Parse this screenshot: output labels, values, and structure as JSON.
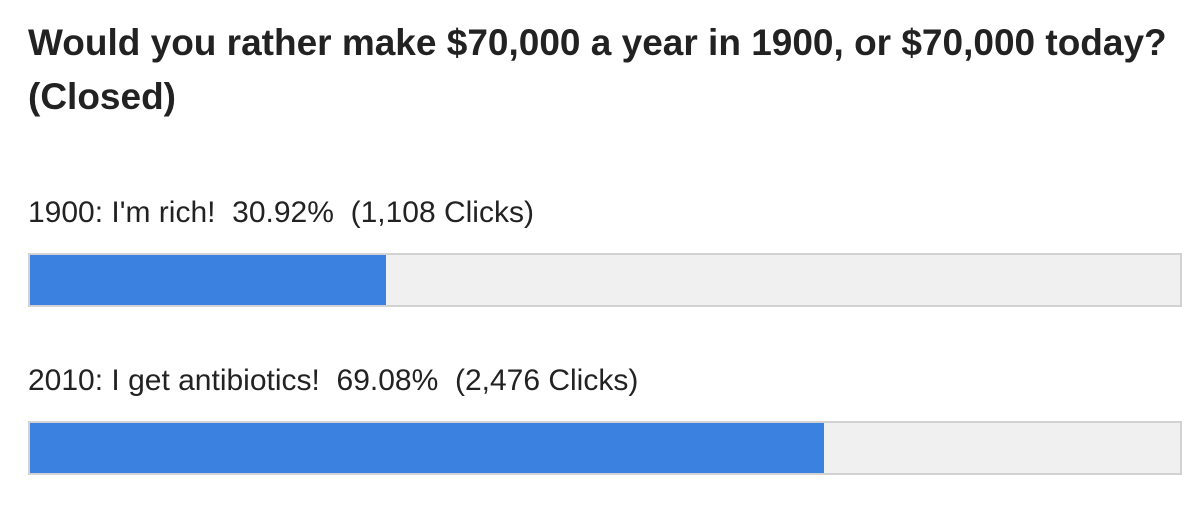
{
  "poll": {
    "title": "Would you rather make $70,000 a year in 1900, or $70,000 today? (Closed)",
    "bar_color": "#3a81e0",
    "track_color": "#f0f0f0",
    "options": [
      {
        "label": "1900: I'm rich!",
        "percent_text": "30.92%",
        "clicks_text": "(1,108 Clicks)",
        "percent": 30.92
      },
      {
        "label": "2010: I get antibiotics!",
        "percent_text": "69.08%",
        "clicks_text": "(2,476 Clicks)",
        "percent": 69.08
      }
    ]
  }
}
